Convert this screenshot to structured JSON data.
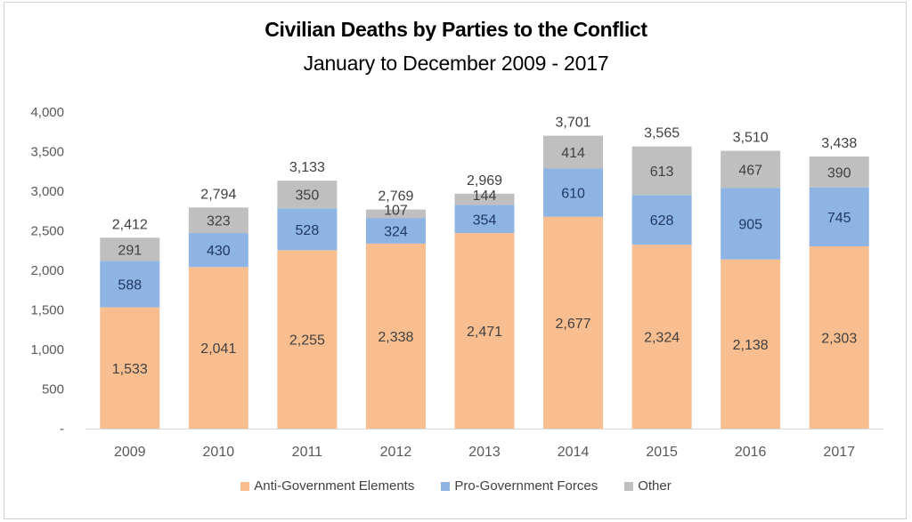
{
  "chart_data": {
    "type": "bar",
    "stacked": true,
    "title": "Civilian Deaths by Parties to the Conflict",
    "subtitle": "January to December 2009 - 2017",
    "xlabel": "",
    "ylabel": "",
    "ylim": [
      0,
      4000
    ],
    "yticks": [
      0,
      500,
      1000,
      1500,
      2000,
      2500,
      3000,
      3500,
      4000
    ],
    "ytick_labels": [
      "-",
      "500",
      "1,000",
      "1,500",
      "2,000",
      "2,500",
      "3,000",
      "3,500",
      "4,000"
    ],
    "grid": false,
    "legend_position": "bottom",
    "categories": [
      "2009",
      "2010",
      "2011",
      "2012",
      "2013",
      "2014",
      "2015",
      "2016",
      "2017"
    ],
    "series": [
      {
        "name": "Anti-Government Elements",
        "color": "#F9BE8F",
        "values": [
          1533,
          2041,
          2255,
          2338,
          2471,
          2677,
          2324,
          2138,
          2303
        ]
      },
      {
        "name": "Pro-Government Forces",
        "color": "#8EB4E3",
        "values": [
          588,
          430,
          528,
          324,
          354,
          610,
          628,
          905,
          745
        ]
      },
      {
        "name": "Other",
        "color": "#BFBFBF",
        "values": [
          291,
          323,
          350,
          107,
          144,
          414,
          613,
          467,
          390
        ]
      }
    ],
    "totals": [
      2412,
      2794,
      3133,
      2769,
      2969,
      3701,
      3565,
      3510,
      3438
    ],
    "segment_labels": [
      [
        "1,533",
        "2,041",
        "2,255",
        "2,338",
        "2,471",
        "2,677",
        "2,324",
        "2,138",
        "2,303"
      ],
      [
        "588",
        "430",
        "528",
        "324",
        "354",
        "610",
        "628",
        "905",
        "745"
      ],
      [
        "291",
        "323",
        "350",
        "107",
        "144",
        "414",
        "613",
        "467",
        "390"
      ]
    ],
    "total_labels": [
      "2,412",
      "2,794",
      "3,133",
      "2,769",
      "2,969",
      "3,701",
      "3,565",
      "3,510",
      "3,438"
    ]
  }
}
